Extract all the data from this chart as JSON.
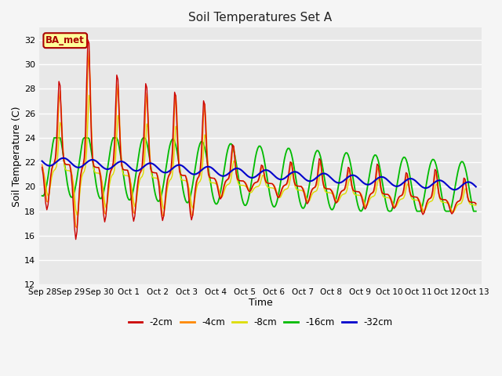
{
  "title": "Soil Temperatures Set A",
  "xlabel": "Time",
  "ylabel": "Soil Temperature (C)",
  "ylim": [
    12,
    33
  ],
  "yticks": [
    12,
    14,
    16,
    18,
    20,
    22,
    24,
    26,
    28,
    30,
    32
  ],
  "colors": {
    "-2cm": "#cc0000",
    "-4cm": "#ff8800",
    "-8cm": "#dddd00",
    "-16cm": "#00bb00",
    "-32cm": "#0000cc"
  },
  "label_box_text": "BA_met",
  "label_box_facecolor": "#ffff99",
  "label_box_edgecolor": "#aa0000",
  "figure_facecolor": "#f5f5f5",
  "plot_facecolor": "#e8e8e8",
  "grid_color": "#d0d0d0",
  "tick_labels": [
    "Sep 28",
    "Sep 29",
    "Sep 30",
    "Oct 1",
    "Oct 2",
    "Oct 3",
    "Oct 4",
    "Oct 5",
    "Oct 6",
    "Oct 7",
    "Oct 8",
    "Oct 9",
    "Oct 10",
    "Oct 11",
    "Oct 12",
    "Oct 13"
  ],
  "legend_labels": [
    "-2cm",
    "-4cm",
    "-8cm",
    "-16cm",
    "-32cm"
  ]
}
